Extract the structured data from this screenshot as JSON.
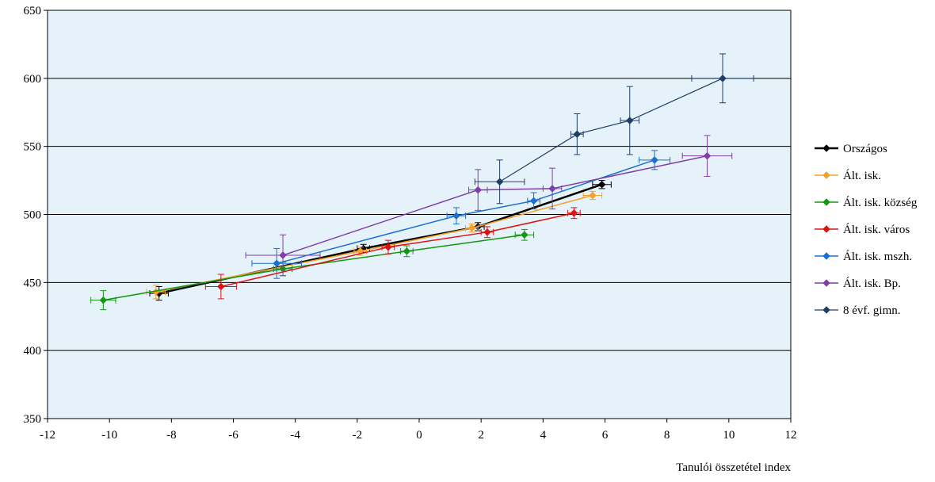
{
  "chart_data": {
    "type": "scatter",
    "xlabel": "Tanulói összetétel index",
    "ylabel": "",
    "title": "",
    "xlim": [
      -12,
      12
    ],
    "ylim": [
      350,
      650
    ],
    "x_ticks": [
      -12,
      -10,
      -8,
      -6,
      -4,
      -2,
      0,
      2,
      4,
      6,
      8,
      10,
      12
    ],
    "y_ticks": [
      350,
      400,
      450,
      500,
      550,
      600,
      650
    ],
    "x_tick_labels": [
      "-12",
      "-10",
      "-8",
      "-6",
      "-4",
      "-2",
      "0",
      "2",
      "4",
      "6",
      "8",
      "10",
      "12"
    ],
    "y_tick_labels": [
      "350",
      "400",
      "450",
      "500",
      "550",
      "600",
      "650"
    ],
    "grid": "horizontal",
    "legend_position": "right",
    "plot_background": "#e6f2f9",
    "series": [
      {
        "name": "Országos",
        "color": "#000000",
        "line_width": 2.5,
        "marker": "diamond",
        "points": [
          {
            "x": -8.4,
            "y": 442,
            "xerr": 0.3,
            "yerr": 5
          },
          {
            "x": -1.8,
            "y": 475,
            "xerr": 0.2,
            "yerr": 3
          },
          {
            "x": 1.9,
            "y": 491,
            "xerr": 0.2,
            "yerr": 3
          },
          {
            "x": 5.9,
            "y": 522,
            "xerr": 0.3,
            "yerr": 3
          }
        ]
      },
      {
        "name": "Ált. isk.",
        "color": "#f5a02a",
        "line_width": 1.5,
        "marker": "diamond",
        "points": [
          {
            "x": -8.5,
            "y": 443,
            "xerr": 0.3,
            "yerr": 5
          },
          {
            "x": -1.9,
            "y": 473,
            "xerr": 0.2,
            "yerr": 3
          },
          {
            "x": 1.7,
            "y": 490,
            "xerr": 0.2,
            "yerr": 3
          },
          {
            "x": 5.6,
            "y": 514,
            "xerr": 0.3,
            "yerr": 3
          }
        ]
      },
      {
        "name": "Ált. isk. község",
        "color": "#119911",
        "line_width": 1.5,
        "marker": "diamond",
        "points": [
          {
            "x": -10.2,
            "y": 437,
            "xerr": 0.4,
            "yerr": 7
          },
          {
            "x": -4.4,
            "y": 460,
            "xerr": 0.3,
            "yerr": 5
          },
          {
            "x": -0.4,
            "y": 473,
            "xerr": 0.2,
            "yerr": 4
          },
          {
            "x": 3.4,
            "y": 485,
            "xerr": 0.3,
            "yerr": 4
          }
        ]
      },
      {
        "name": "Ált. isk. város",
        "color": "#dd1111",
        "line_width": 1.5,
        "marker": "diamond",
        "points": [
          {
            "x": -6.4,
            "y": 447,
            "xerr": 0.5,
            "yerr": 9
          },
          {
            "x": -1.0,
            "y": 476,
            "xerr": 0.2,
            "yerr": 5
          },
          {
            "x": 2.2,
            "y": 487,
            "xerr": 0.2,
            "yerr": 4
          },
          {
            "x": 5.0,
            "y": 501,
            "xerr": 0.2,
            "yerr": 4
          }
        ]
      },
      {
        "name": "Ált. isk. mszh.",
        "color": "#1a6fd1",
        "line_width": 1.5,
        "marker": "diamond",
        "points": [
          {
            "x": -4.6,
            "y": 464,
            "xerr": 0.8,
            "yerr": 11
          },
          {
            "x": 1.2,
            "y": 499,
            "xerr": 0.3,
            "yerr": 6
          },
          {
            "x": 3.7,
            "y": 510,
            "xerr": 0.2,
            "yerr": 6
          },
          {
            "x": 7.6,
            "y": 540,
            "xerr": 0.5,
            "yerr": 7
          }
        ]
      },
      {
        "name": "Ált. isk. Bp.",
        "color": "#7f3fa8",
        "line_width": 1.5,
        "marker": "diamond",
        "points": [
          {
            "x": -4.4,
            "y": 470,
            "xerr": 1.2,
            "yerr": 15
          },
          {
            "x": 1.9,
            "y": 518,
            "xerr": 0.3,
            "yerr": 15
          },
          {
            "x": 4.3,
            "y": 519,
            "xerr": 0.3,
            "yerr": 15
          },
          {
            "x": 9.3,
            "y": 543,
            "xerr": 0.8,
            "yerr": 15
          }
        ]
      },
      {
        "name": "8 évf. gimn.",
        "color": "#1f3f66",
        "line_width": 1.2,
        "marker": "diamond",
        "points": [
          {
            "x": 2.6,
            "y": 524,
            "xerr": 0.8,
            "yerr": 16
          },
          {
            "x": 5.1,
            "y": 559,
            "xerr": 0.2,
            "yerr": 15
          },
          {
            "x": 6.8,
            "y": 569,
            "xerr": 0.3,
            "yerr": 25
          },
          {
            "x": 9.8,
            "y": 600,
            "xerr": 1.0,
            "yerr": 18
          }
        ]
      }
    ]
  }
}
